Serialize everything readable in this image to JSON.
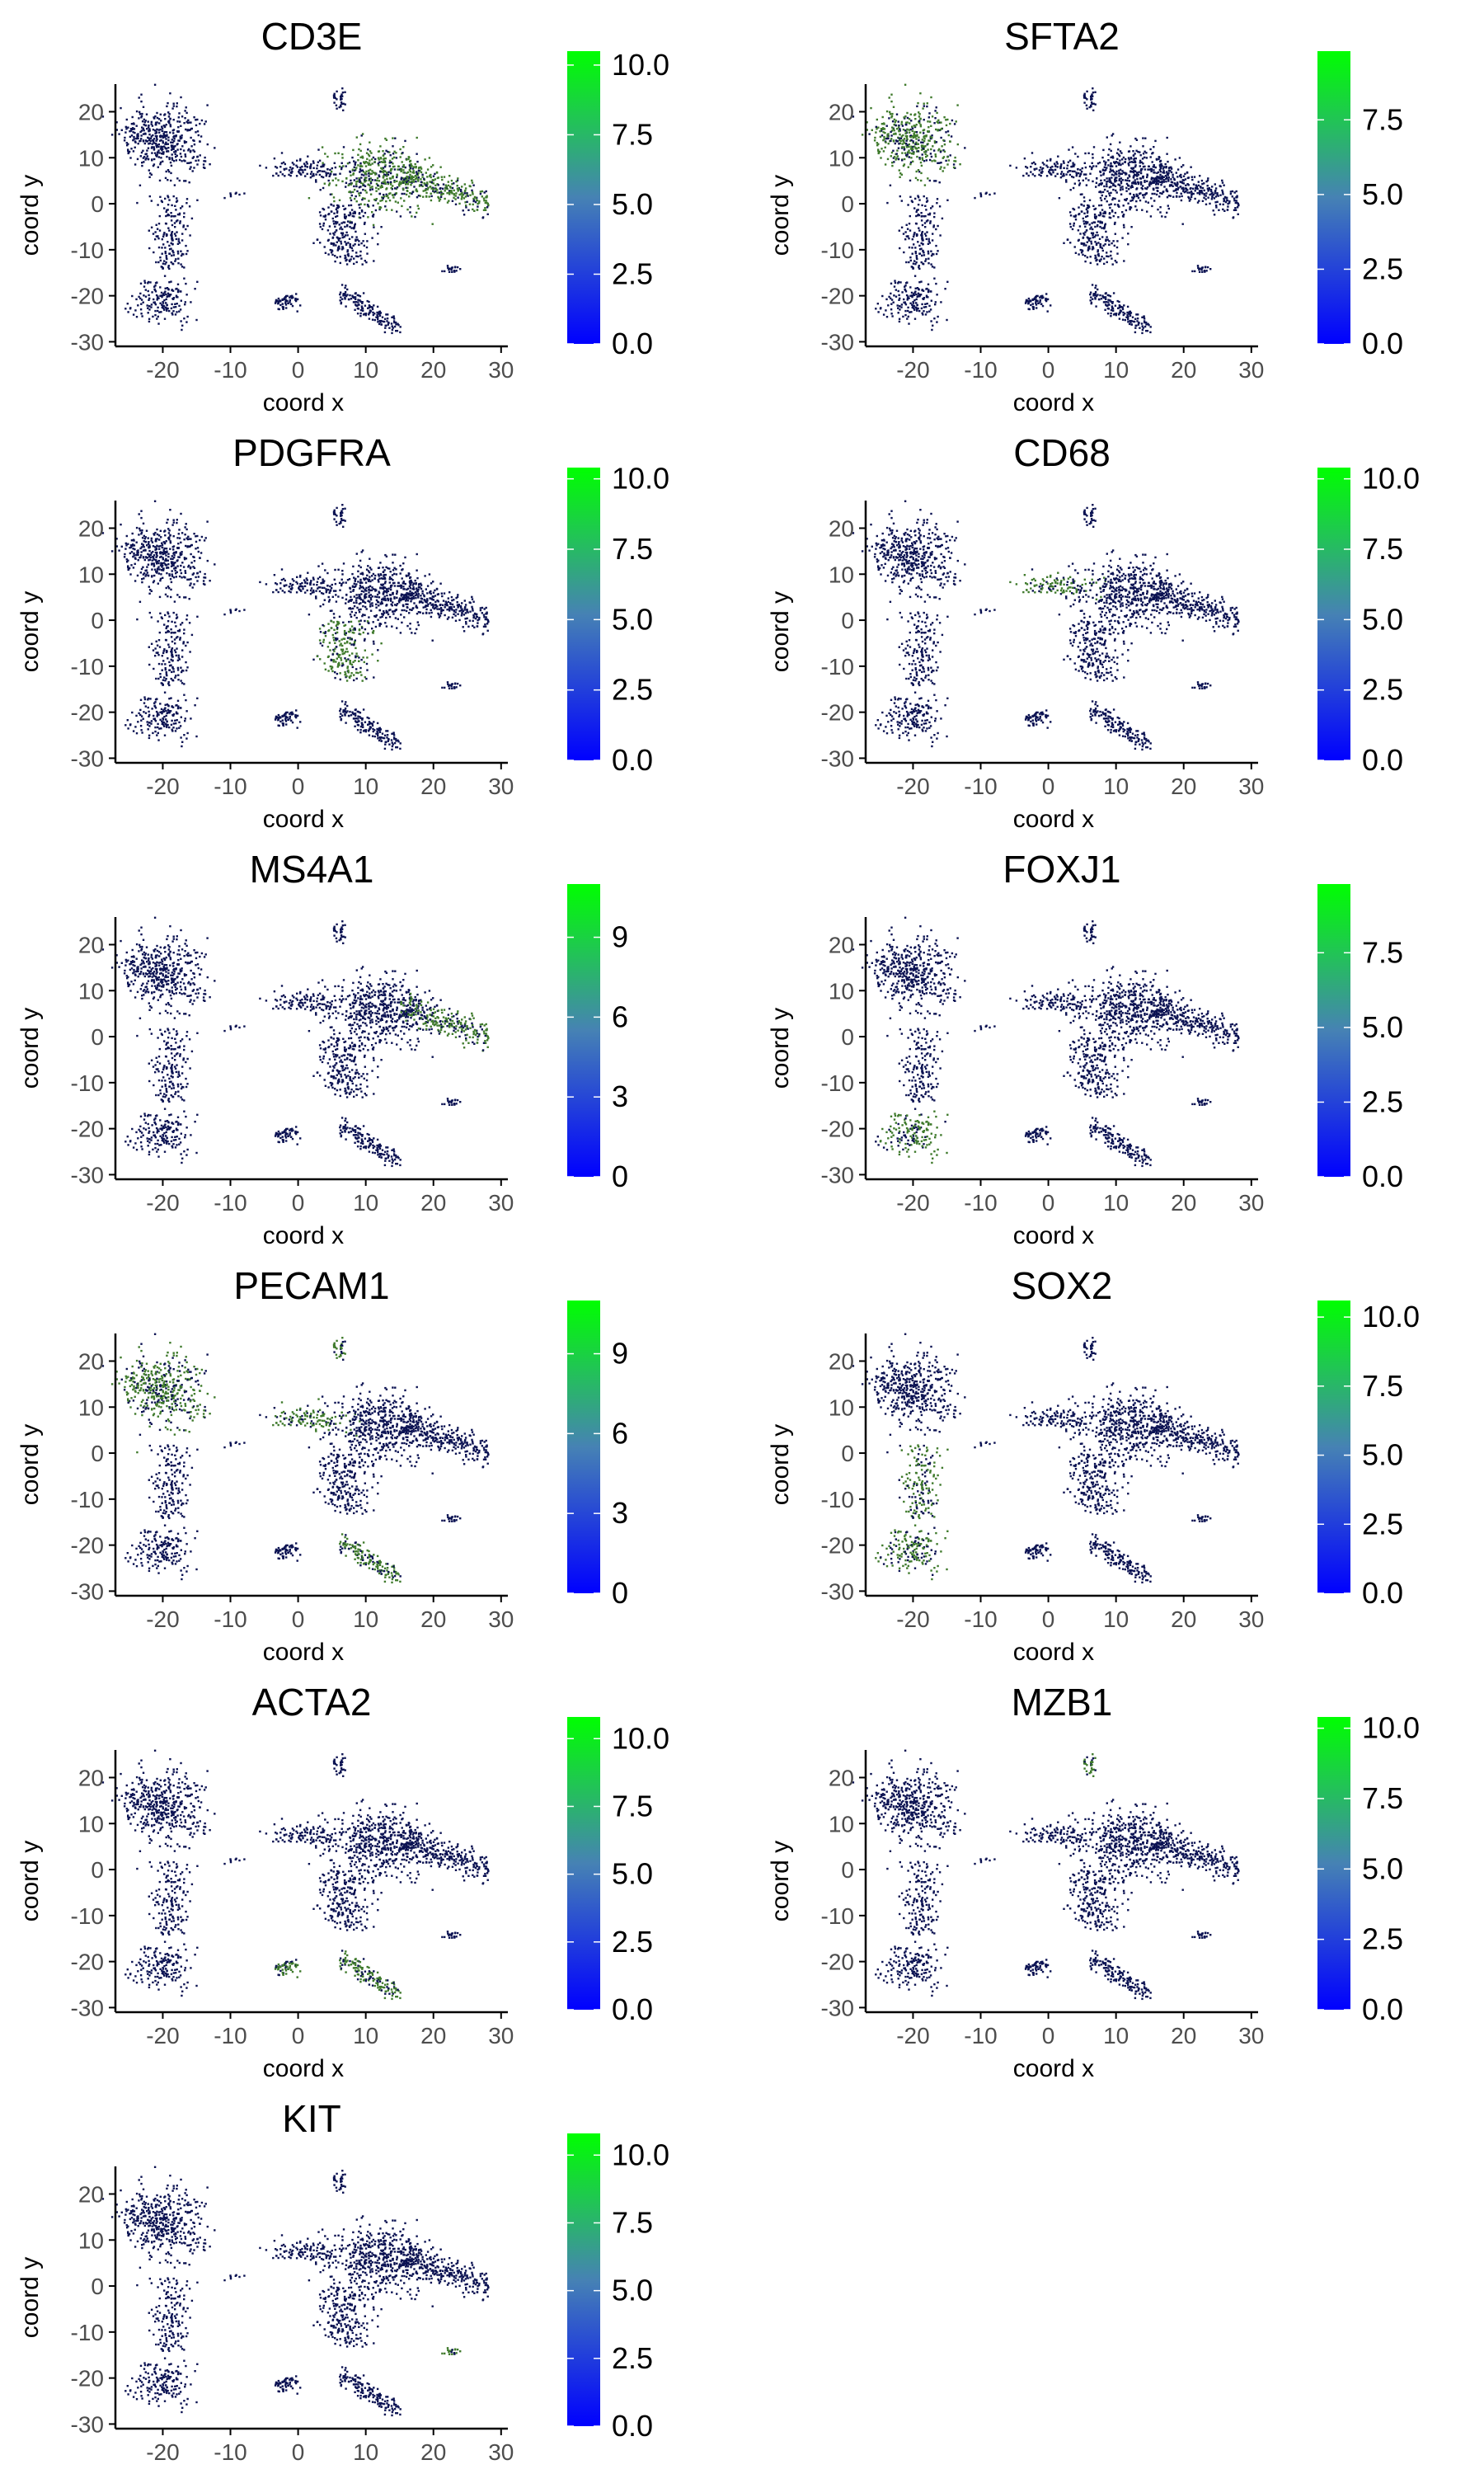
{
  "figure": {
    "colors": {
      "low": "#0000ff",
      "mid": "#4682b4",
      "high": "#00ff00",
      "cells": "#0b1252",
      "axis": "#000000",
      "ticktext": "#4d4d4d"
    }
  },
  "chart_data": [
    {
      "type": "scatter",
      "title": "CD3E",
      "xlabel": "coord x",
      "ylabel": "coord y",
      "xlim": [
        -27,
        31
      ],
      "ylim": [
        -31,
        26
      ],
      "x_ticks": [
        "-20",
        "-10",
        "0",
        "10",
        "20",
        "30"
      ],
      "y_ticks": [
        "20",
        "10",
        "0",
        "-10",
        "-20",
        "-30"
      ],
      "color_scale": {
        "min": 0,
        "max": 10.5,
        "ticks": [
          "0.0",
          "2.5",
          "5.0",
          "7.5",
          "10.0"
        ]
      },
      "highlight_regions": [
        "center",
        "right-arm"
      ]
    },
    {
      "type": "scatter",
      "title": "SFTA2",
      "xlabel": "coord x",
      "ylabel": "coord y",
      "xlim": [
        -27,
        31
      ],
      "ylim": [
        -31,
        26
      ],
      "x_ticks": [
        "-20",
        "-10",
        "0",
        "10",
        "20",
        "30"
      ],
      "y_ticks": [
        "20",
        "10",
        "0",
        "-10",
        "-20",
        "-30"
      ],
      "color_scale": {
        "min": 0,
        "max": 9.8,
        "ticks": [
          "0.0",
          "2.5",
          "5.0",
          "7.5"
        ]
      },
      "highlight_regions": [
        "left-top"
      ]
    },
    {
      "type": "scatter",
      "title": "PDGFRA",
      "xlabel": "coord x",
      "ylabel": "coord y",
      "xlim": [
        -27,
        31
      ],
      "ylim": [
        -31,
        26
      ],
      "x_ticks": [
        "-20",
        "-10",
        "0",
        "10",
        "20",
        "30"
      ],
      "y_ticks": [
        "20",
        "10",
        "0",
        "-10",
        "-20",
        "-30"
      ],
      "color_scale": {
        "min": 0,
        "max": 10.4,
        "ticks": [
          "0.0",
          "2.5",
          "5.0",
          "7.5",
          "10.0"
        ]
      },
      "highlight_regions": [
        "center-lower"
      ]
    },
    {
      "type": "scatter",
      "title": "CD68",
      "xlabel": "coord x",
      "ylabel": "coord y",
      "xlim": [
        -27,
        31
      ],
      "ylim": [
        -31,
        26
      ],
      "x_ticks": [
        "-20",
        "-10",
        "0",
        "10",
        "20",
        "30"
      ],
      "y_ticks": [
        "20",
        "10",
        "0",
        "-10",
        "-20",
        "-30"
      ],
      "color_scale": {
        "min": 0,
        "max": 10.4,
        "ticks": [
          "0.0",
          "2.5",
          "5.0",
          "7.5",
          "10.0"
        ]
      },
      "highlight_regions": [
        "center-left-lobe"
      ]
    },
    {
      "type": "scatter",
      "title": "MS4A1",
      "xlabel": "coord x",
      "ylabel": "coord y",
      "xlim": [
        -27,
        31
      ],
      "ylim": [
        -31,
        26
      ],
      "x_ticks": [
        "-20",
        "-10",
        "0",
        "10",
        "20",
        "30"
      ],
      "y_ticks": [
        "20",
        "10",
        "0",
        "-10",
        "-20",
        "-30"
      ],
      "color_scale": {
        "min": 0,
        "max": 11,
        "ticks": [
          "0",
          "3",
          "6",
          "9"
        ]
      },
      "highlight_regions": [
        "right-arm"
      ]
    },
    {
      "type": "scatter",
      "title": "FOXJ1",
      "xlabel": "coord x",
      "ylabel": "coord y",
      "xlim": [
        -27,
        31
      ],
      "ylim": [
        -31,
        26
      ],
      "x_ticks": [
        "-20",
        "-10",
        "0",
        "10",
        "20",
        "30"
      ],
      "y_ticks": [
        "20",
        "10",
        "0",
        "-10",
        "-20",
        "-30"
      ],
      "color_scale": {
        "min": 0,
        "max": 9.8,
        "ticks": [
          "0.0",
          "2.5",
          "5.0",
          "7.5"
        ]
      },
      "highlight_regions": [
        "left-bottom-loop"
      ]
    },
    {
      "type": "scatter",
      "title": "PECAM1",
      "xlabel": "coord x",
      "ylabel": "coord y",
      "xlim": [
        -27,
        31
      ],
      "ylim": [
        -31,
        26
      ],
      "x_ticks": [
        "-20",
        "-10",
        "0",
        "10",
        "20",
        "30"
      ],
      "y_ticks": [
        "20",
        "10",
        "0",
        "-10",
        "-20",
        "-30"
      ],
      "color_scale": {
        "min": 0,
        "max": 11,
        "ticks": [
          "0",
          "3",
          "6",
          "9"
        ]
      },
      "highlight_regions": [
        "bottom-streak",
        "top-island",
        "center-left-lobe",
        "left-top"
      ]
    },
    {
      "type": "scatter",
      "title": "SOX2",
      "xlabel": "coord x",
      "ylabel": "coord y",
      "xlim": [
        -27,
        31
      ],
      "ylim": [
        -31,
        26
      ],
      "x_ticks": [
        "-20",
        "-10",
        "0",
        "10",
        "20",
        "30"
      ],
      "y_ticks": [
        "20",
        "10",
        "0",
        "-10",
        "-20",
        "-30"
      ],
      "color_scale": {
        "min": 0,
        "max": 10.6,
        "ticks": [
          "0.0",
          "2.5",
          "5.0",
          "7.5",
          "10.0"
        ]
      },
      "highlight_regions": [
        "left-bottom-loop",
        "left-mid"
      ]
    },
    {
      "type": "scatter",
      "title": "ACTA2",
      "xlabel": "coord x",
      "ylabel": "coord y",
      "xlim": [
        -27,
        31
      ],
      "ylim": [
        -31,
        26
      ],
      "x_ticks": [
        "-20",
        "-10",
        "0",
        "10",
        "20",
        "30"
      ],
      "y_ticks": [
        "20",
        "10",
        "0",
        "-10",
        "-20",
        "-30"
      ],
      "color_scale": {
        "min": 0,
        "max": 10.8,
        "ticks": [
          "0.0",
          "2.5",
          "5.0",
          "7.5",
          "10.0"
        ]
      },
      "highlight_regions": [
        "small-bottom-cluster",
        "bottom-streak"
      ]
    },
    {
      "type": "scatter",
      "title": "MZB1",
      "xlabel": "coord x",
      "ylabel": "coord y",
      "xlim": [
        -27,
        31
      ],
      "ylim": [
        -31,
        26
      ],
      "x_ticks": [
        "-20",
        "-10",
        "0",
        "10",
        "20",
        "30"
      ],
      "y_ticks": [
        "20",
        "10",
        "0",
        "-10",
        "-20",
        "-30"
      ],
      "color_scale": {
        "min": 0,
        "max": 10.4,
        "ticks": [
          "0.0",
          "2.5",
          "5.0",
          "7.5",
          "10.0"
        ]
      },
      "highlight_regions": [
        "top-island"
      ]
    },
    {
      "type": "scatter",
      "title": "KIT",
      "xlabel": "coord x",
      "ylabel": "coord y",
      "xlim": [
        -27,
        31
      ],
      "ylim": [
        -31,
        26
      ],
      "x_ticks": [
        "-20",
        "-10",
        "0",
        "10",
        "20",
        "30"
      ],
      "y_ticks": [
        "20",
        "10",
        "0",
        "-10",
        "-20",
        "-30"
      ],
      "color_scale": {
        "min": 0,
        "max": 10.8,
        "ticks": [
          "0.0",
          "2.5",
          "5.0",
          "7.5",
          "10.0"
        ]
      },
      "highlight_regions": [
        "small-right-island"
      ]
    }
  ]
}
